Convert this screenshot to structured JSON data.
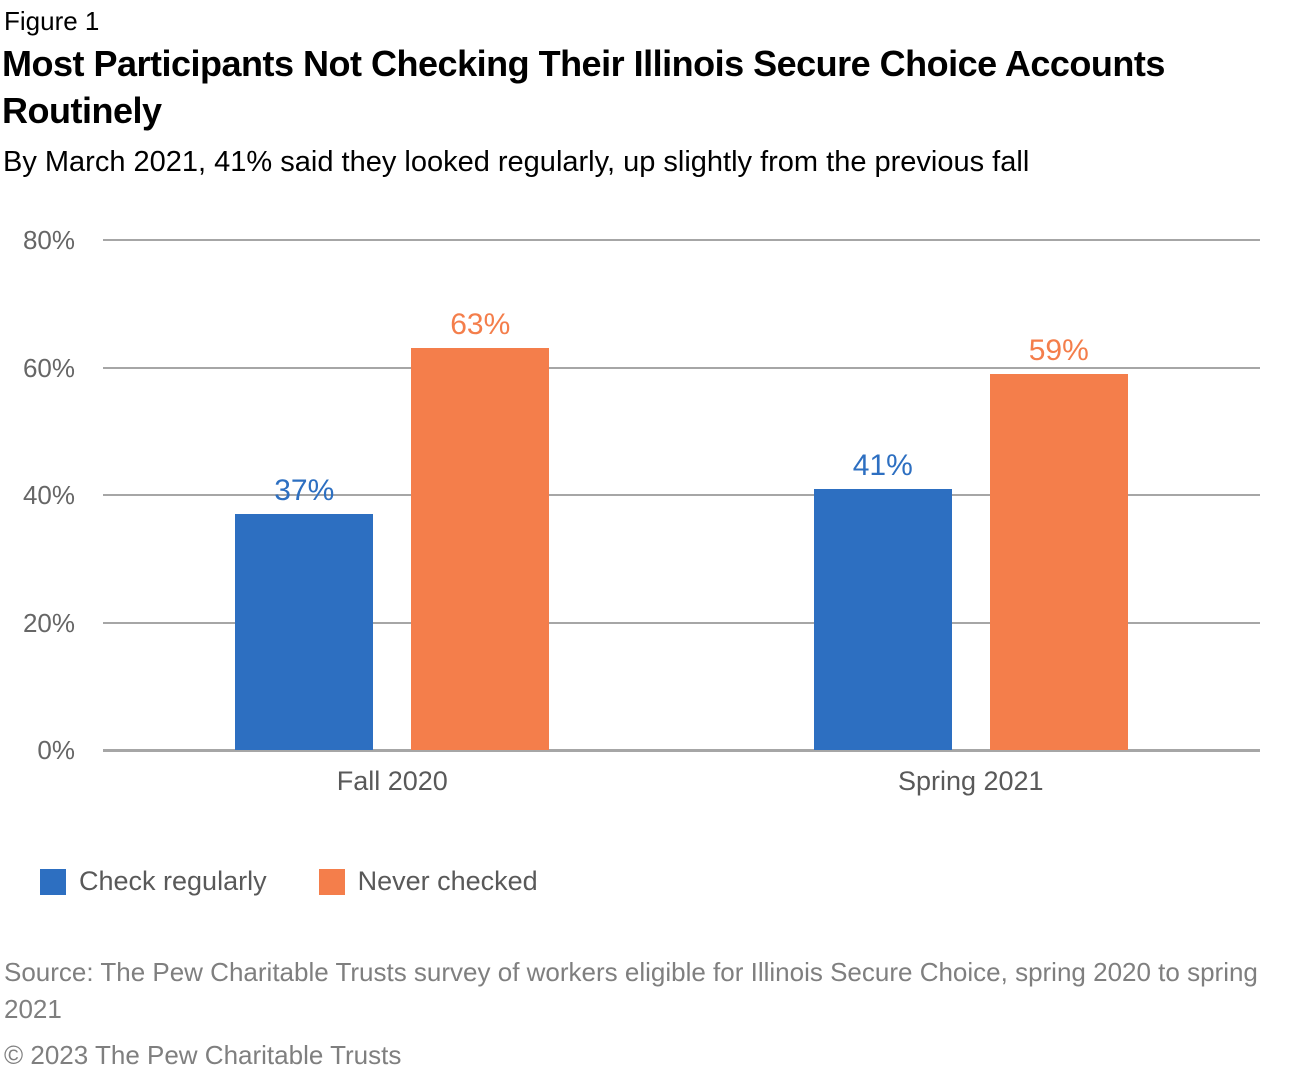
{
  "header": {
    "figure_label": "Figure 1",
    "title": "Most Participants Not Checking Their Illinois Secure Choice Accounts\nRoutinely",
    "subtitle": "By March 2021, 41% said they looked regularly, up slightly from the previous fall"
  },
  "chart_data": {
    "type": "bar",
    "title": "Most Participants Not Checking Their Illinois Secure Choice Accounts Routinely",
    "subtitle": "By March 2021, 41% said they looked regularly, up slightly from the previous fall",
    "categories": [
      "Fall 2020",
      "Spring 2021"
    ],
    "series": [
      {
        "name": "Check regularly",
        "color": "#2D6FC1",
        "values": [
          37,
          41
        ],
        "labels": [
          "37%",
          "41%"
        ]
      },
      {
        "name": "Never checked",
        "color": "#F47E4B",
        "values": [
          63,
          59
        ],
        "labels": [
          "63%",
          "59%"
        ]
      }
    ],
    "xlabel": "",
    "ylabel": "",
    "ylim": [
      0,
      80
    ],
    "yticks": [
      0,
      20,
      40,
      60,
      80
    ],
    "ytick_labels": [
      "0%",
      "20%",
      "40%",
      "60%",
      "80%"
    ],
    "grid": "horizontal",
    "legend_position": "bottom-left"
  },
  "colors": {
    "bar_blue": "#2D6FC1",
    "bar_orange": "#F47E4B",
    "gridline": "#A6A6A6",
    "axis_tick_text": "#666666",
    "category_text": "#595959",
    "footer_text": "#7F7F7F",
    "title_text": "#000000"
  },
  "footer": {
    "source": "Source: The Pew Charitable Trusts survey of workers eligible for Illinois Secure Choice, spring 2020 to spring\n2021",
    "copyright": "© 2023 The Pew Charitable Trusts"
  }
}
